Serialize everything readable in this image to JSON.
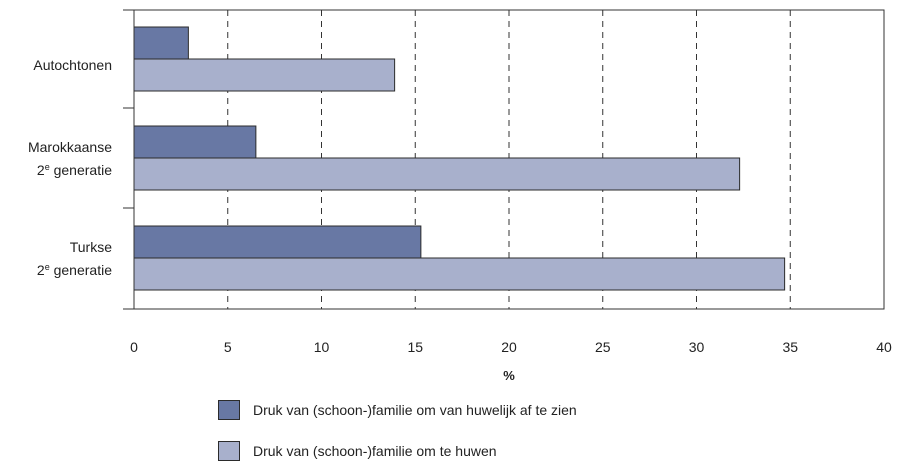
{
  "chart_data": {
    "type": "bar",
    "orientation": "horizontal",
    "categories": [
      {
        "line1": "Autochtonen",
        "line2": "",
        "sup": "",
        "line2_rest": ""
      },
      {
        "line1": "Marokkaanse",
        "line2": "2",
        "sup": "e",
        "line2_rest": " generatie"
      },
      {
        "line1": "Turkse",
        "line2": "2",
        "sup": "e",
        "line2_rest": " generatie"
      }
    ],
    "series": [
      {
        "name": "Druk van (schoon-)familie om van huwelijk af te zien",
        "values": [
          2.9,
          6.5,
          15.3
        ],
        "color": "#6878a4"
      },
      {
        "name": "Druk van (schoon-)familie om te huwen",
        "values": [
          13.9,
          32.3,
          34.7
        ],
        "color": "#a8b0cc"
      }
    ],
    "xlim": [
      0,
      40
    ],
    "xticks": [
      0,
      5,
      10,
      15,
      20,
      25,
      30,
      35,
      40
    ],
    "xlabel": "%",
    "grid": "vertical dashed",
    "legend_placement": "bottom"
  }
}
